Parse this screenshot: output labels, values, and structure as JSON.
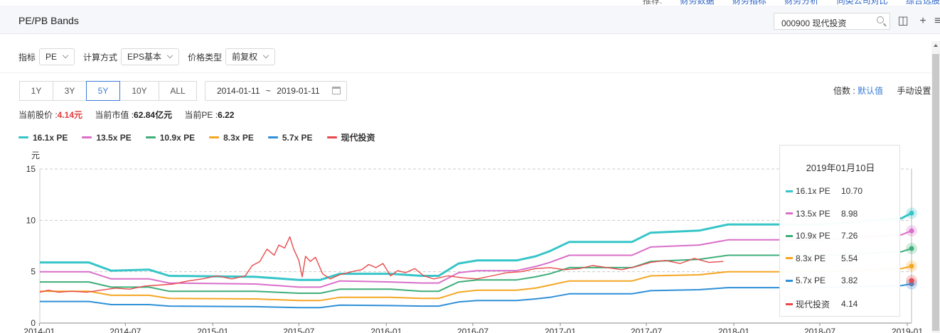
{
  "topnav": {
    "label": "推荐:",
    "links": [
      "财务数据",
      "财务指标",
      "财务分析",
      "同类公司对比",
      "综合选股"
    ]
  },
  "header": {
    "title": "PE/PB Bands",
    "search_value": "000900 现代投资"
  },
  "filters": {
    "indicator_label": "指标",
    "indicator_value": "PE",
    "calc_label": "计算方式",
    "calc_value": "EPS基本",
    "price_label": "价格类型",
    "price_value": "前复权"
  },
  "ranges": [
    "1Y",
    "3Y",
    "5Y",
    "10Y",
    "ALL"
  ],
  "active_range": "5Y",
  "date_range": {
    "start": "2014-01-11",
    "sep": "~",
    "end": "2019-01-11"
  },
  "multiplier": {
    "label": "倍数 :",
    "default_link": "默认值",
    "manual": "手动设置"
  },
  "stats": {
    "price_label": "当前股价 :",
    "price_value": "4.14元",
    "mcap_label": "当前市值 :",
    "mcap_value": "62.84亿元",
    "pe_label": "当前PE :",
    "pe_value": "6.22"
  },
  "colors": {
    "accent": "#3a7bd5",
    "price_red": "#e03c3c"
  },
  "chart_data": {
    "type": "line",
    "ylabel": "元",
    "ylim": [
      0,
      15
    ],
    "yticks": [
      0,
      5,
      10,
      15
    ],
    "xlim": [
      "2014-01-02",
      "2019-01-10"
    ],
    "xticks": [
      "2014-01",
      "2014-07",
      "2015-01",
      "2015-07",
      "2016-01",
      "2016-07",
      "2017-01",
      "2017-07",
      "2018-01",
      "2018-07",
      "2019-01"
    ],
    "grid": "horizontal-dashed",
    "legend": "top-left",
    "series": [
      {
        "name": "16.1x PE",
        "color": "#36c5c8",
        "width": 3,
        "points": [
          [
            "2014-01-02",
            5.9
          ],
          [
            "2014-04-15",
            5.9
          ],
          [
            "2014-06-01",
            5.1
          ],
          [
            "2014-08-20",
            5.2
          ],
          [
            "2014-10-01",
            4.6
          ],
          [
            "2015-04-01",
            4.5
          ],
          [
            "2015-07-01",
            4.2
          ],
          [
            "2015-08-15",
            4.2
          ],
          [
            "2015-09-25",
            4.8
          ],
          [
            "2016-01-10",
            4.8
          ],
          [
            "2016-03-15",
            4.6
          ],
          [
            "2016-04-20",
            4.6
          ],
          [
            "2016-06-01",
            5.8
          ],
          [
            "2016-07-10",
            6.1
          ],
          [
            "2016-10-01",
            6.1
          ],
          [
            "2016-11-10",
            6.5
          ],
          [
            "2016-12-10",
            7.0
          ],
          [
            "2017-01-20",
            7.9
          ],
          [
            "2017-06-01",
            7.9
          ],
          [
            "2017-07-10",
            8.8
          ],
          [
            "2017-10-20",
            9.0
          ],
          [
            "2017-12-20",
            9.6
          ],
          [
            "2018-05-01",
            9.6
          ],
          [
            "2018-07-01",
            9.6
          ],
          [
            "2018-12-20",
            10.2
          ],
          [
            "2019-01-10",
            10.7
          ]
        ]
      },
      {
        "name": "13.5x PE",
        "color": "#d96fc9",
        "width": 2,
        "points": [
          [
            "2014-01-02",
            5.0
          ],
          [
            "2014-04-15",
            5.0
          ],
          [
            "2014-06-01",
            4.3
          ],
          [
            "2014-08-20",
            4.3
          ],
          [
            "2014-10-01",
            3.9
          ],
          [
            "2015-04-01",
            3.8
          ],
          [
            "2015-07-01",
            3.5
          ],
          [
            "2015-08-15",
            3.5
          ],
          [
            "2015-09-25",
            4.1
          ],
          [
            "2016-01-10",
            4.0
          ],
          [
            "2016-03-15",
            3.9
          ],
          [
            "2016-04-20",
            3.9
          ],
          [
            "2016-06-01",
            4.9
          ],
          [
            "2016-07-10",
            5.1
          ],
          [
            "2016-10-01",
            5.1
          ],
          [
            "2016-11-10",
            5.5
          ],
          [
            "2016-12-10",
            5.9
          ],
          [
            "2017-01-20",
            6.6
          ],
          [
            "2017-06-01",
            6.6
          ],
          [
            "2017-07-10",
            7.4
          ],
          [
            "2017-10-20",
            7.6
          ],
          [
            "2017-12-20",
            8.1
          ],
          [
            "2018-05-01",
            8.1
          ],
          [
            "2018-07-01",
            8.1
          ],
          [
            "2018-12-20",
            8.6
          ],
          [
            "2019-01-10",
            8.98
          ]
        ]
      },
      {
        "name": "10.9x PE",
        "color": "#3fae7a",
        "width": 2,
        "points": [
          [
            "2014-01-02",
            4.0
          ],
          [
            "2014-04-15",
            4.0
          ],
          [
            "2014-06-01",
            3.5
          ],
          [
            "2014-08-20",
            3.5
          ],
          [
            "2014-10-01",
            3.1
          ],
          [
            "2015-04-01",
            3.1
          ],
          [
            "2015-07-01",
            2.9
          ],
          [
            "2015-08-15",
            2.9
          ],
          [
            "2015-09-25",
            3.3
          ],
          [
            "2016-01-10",
            3.3
          ],
          [
            "2016-03-15",
            3.1
          ],
          [
            "2016-04-20",
            3.1
          ],
          [
            "2016-06-01",
            4.0
          ],
          [
            "2016-07-10",
            4.2
          ],
          [
            "2016-10-01",
            4.2
          ],
          [
            "2016-11-10",
            4.5
          ],
          [
            "2016-12-10",
            4.8
          ],
          [
            "2017-01-20",
            5.4
          ],
          [
            "2017-06-01",
            5.4
          ],
          [
            "2017-07-10",
            6.0
          ],
          [
            "2017-10-20",
            6.2
          ],
          [
            "2017-12-20",
            6.6
          ],
          [
            "2018-05-01",
            6.6
          ],
          [
            "2018-07-01",
            6.6
          ],
          [
            "2018-12-20",
            6.95
          ],
          [
            "2019-01-10",
            7.26
          ]
        ]
      },
      {
        "name": "8.3x PE",
        "color": "#f5a623",
        "width": 2,
        "points": [
          [
            "2014-01-02",
            3.1
          ],
          [
            "2014-04-15",
            3.1
          ],
          [
            "2014-06-01",
            2.7
          ],
          [
            "2014-08-20",
            2.7
          ],
          [
            "2014-10-01",
            2.4
          ],
          [
            "2015-04-01",
            2.35
          ],
          [
            "2015-07-01",
            2.2
          ],
          [
            "2015-08-15",
            2.2
          ],
          [
            "2015-09-25",
            2.5
          ],
          [
            "2016-01-10",
            2.5
          ],
          [
            "2016-03-15",
            2.4
          ],
          [
            "2016-04-20",
            2.4
          ],
          [
            "2016-06-01",
            3.0
          ],
          [
            "2016-07-10",
            3.2
          ],
          [
            "2016-10-01",
            3.2
          ],
          [
            "2016-11-10",
            3.4
          ],
          [
            "2016-12-10",
            3.7
          ],
          [
            "2017-01-20",
            4.1
          ],
          [
            "2017-06-01",
            4.1
          ],
          [
            "2017-07-10",
            4.6
          ],
          [
            "2017-10-20",
            4.7
          ],
          [
            "2017-12-20",
            5.0
          ],
          [
            "2018-05-01",
            5.0
          ],
          [
            "2018-07-01",
            5.0
          ],
          [
            "2018-12-20",
            5.3
          ],
          [
            "2019-01-10",
            5.54
          ]
        ]
      },
      {
        "name": "5.7x PE",
        "color": "#2f8fd8",
        "width": 2,
        "points": [
          [
            "2014-01-02",
            2.1
          ],
          [
            "2014-04-15",
            2.1
          ],
          [
            "2014-06-01",
            1.8
          ],
          [
            "2014-08-20",
            1.8
          ],
          [
            "2014-10-01",
            1.65
          ],
          [
            "2015-04-01",
            1.6
          ],
          [
            "2015-07-01",
            1.5
          ],
          [
            "2015-08-15",
            1.5
          ],
          [
            "2015-09-25",
            1.75
          ],
          [
            "2016-01-10",
            1.7
          ],
          [
            "2016-03-15",
            1.65
          ],
          [
            "2016-04-20",
            1.65
          ],
          [
            "2016-06-01",
            2.05
          ],
          [
            "2016-07-10",
            2.2
          ],
          [
            "2016-10-01",
            2.2
          ],
          [
            "2016-11-10",
            2.35
          ],
          [
            "2016-12-10",
            2.5
          ],
          [
            "2017-01-20",
            2.85
          ],
          [
            "2017-06-01",
            2.85
          ],
          [
            "2017-07-10",
            3.15
          ],
          [
            "2017-10-20",
            3.25
          ],
          [
            "2017-12-20",
            3.45
          ],
          [
            "2018-05-01",
            3.45
          ],
          [
            "2018-07-01",
            3.45
          ],
          [
            "2018-12-20",
            3.65
          ],
          [
            "2019-01-10",
            3.82
          ]
        ]
      },
      {
        "name": "现代投资",
        "color": "#e8494a",
        "width": 1.4,
        "points": [
          [
            "2014-01-02",
            3.0
          ],
          [
            "2014-01-20",
            3.2
          ],
          [
            "2014-02-10",
            3.0
          ],
          [
            "2014-03-10",
            3.1
          ],
          [
            "2014-04-10",
            3.0
          ],
          [
            "2014-05-10",
            3.2
          ],
          [
            "2014-06-10",
            3.4
          ],
          [
            "2014-07-10",
            3.3
          ],
          [
            "2014-08-10",
            3.6
          ],
          [
            "2014-09-10",
            3.7
          ],
          [
            "2014-10-10",
            3.8
          ],
          [
            "2014-11-10",
            4.1
          ],
          [
            "2014-12-10",
            4.3
          ],
          [
            "2015-01-10",
            4.6
          ],
          [
            "2015-02-10",
            4.3
          ],
          [
            "2015-03-10",
            4.6
          ],
          [
            "2015-03-25",
            5.6
          ],
          [
            "2015-04-10",
            6.0
          ],
          [
            "2015-04-25",
            7.2
          ],
          [
            "2015-05-10",
            6.6
          ],
          [
            "2015-05-20",
            7.6
          ],
          [
            "2015-06-01",
            7.3
          ],
          [
            "2015-06-12",
            8.4
          ],
          [
            "2015-06-20",
            7.2
          ],
          [
            "2015-07-01",
            6.1
          ],
          [
            "2015-07-08",
            4.5
          ],
          [
            "2015-07-15",
            6.5
          ],
          [
            "2015-07-25",
            6.0
          ],
          [
            "2015-08-05",
            6.4
          ],
          [
            "2015-08-20",
            4.8
          ],
          [
            "2015-09-05",
            4.3
          ],
          [
            "2015-09-25",
            4.7
          ],
          [
            "2015-10-20",
            5.0
          ],
          [
            "2015-11-10",
            5.2
          ],
          [
            "2015-11-25",
            5.7
          ],
          [
            "2015-12-10",
            5.4
          ],
          [
            "2015-12-25",
            5.8
          ],
          [
            "2016-01-10",
            4.6
          ],
          [
            "2016-01-25",
            5.1
          ],
          [
            "2016-02-10",
            4.9
          ],
          [
            "2016-03-01",
            5.3
          ],
          [
            "2016-03-20",
            4.6
          ],
          [
            "2016-04-10",
            4.3
          ],
          [
            "2016-05-10",
            4.6
          ],
          [
            "2016-06-10",
            4.4
          ],
          [
            "2016-07-10",
            4.3
          ],
          [
            "2016-08-10",
            4.6
          ],
          [
            "2016-09-10",
            4.9
          ],
          [
            "2016-10-10",
            5.0
          ],
          [
            "2016-11-10",
            5.3
          ],
          [
            "2016-12-10",
            5.4
          ],
          [
            "2017-01-10",
            5.2
          ],
          [
            "2017-02-10",
            5.3
          ],
          [
            "2017-03-10",
            5.6
          ],
          [
            "2017-04-10",
            5.4
          ],
          [
            "2017-05-10",
            5.2
          ],
          [
            "2017-06-10",
            5.5
          ],
          [
            "2017-07-10",
            5.9
          ],
          [
            "2017-08-10",
            6.1
          ],
          [
            "2017-09-10",
            5.8
          ],
          [
            "2017-10-10",
            6.3
          ],
          [
            "2017-11-10",
            5.9
          ],
          [
            "2017-12-10",
            6.0
          ]
        ]
      }
    ]
  },
  "tooltip": {
    "date": "2019年01月10日",
    "rows": [
      {
        "name": "16.1x PE",
        "value": "10.70",
        "color": "#36c5c8"
      },
      {
        "name": "13.5x PE",
        "value": "8.98",
        "color": "#d96fc9"
      },
      {
        "name": "10.9x PE",
        "value": "7.26",
        "color": "#3fae7a"
      },
      {
        "name": "8.3x PE",
        "value": "5.54",
        "color": "#f5a623"
      },
      {
        "name": "5.7x PE",
        "value": "3.82",
        "color": "#2f8fd8"
      },
      {
        "name": "现代投资",
        "value": "4.14",
        "color": "#e8494a"
      }
    ]
  }
}
